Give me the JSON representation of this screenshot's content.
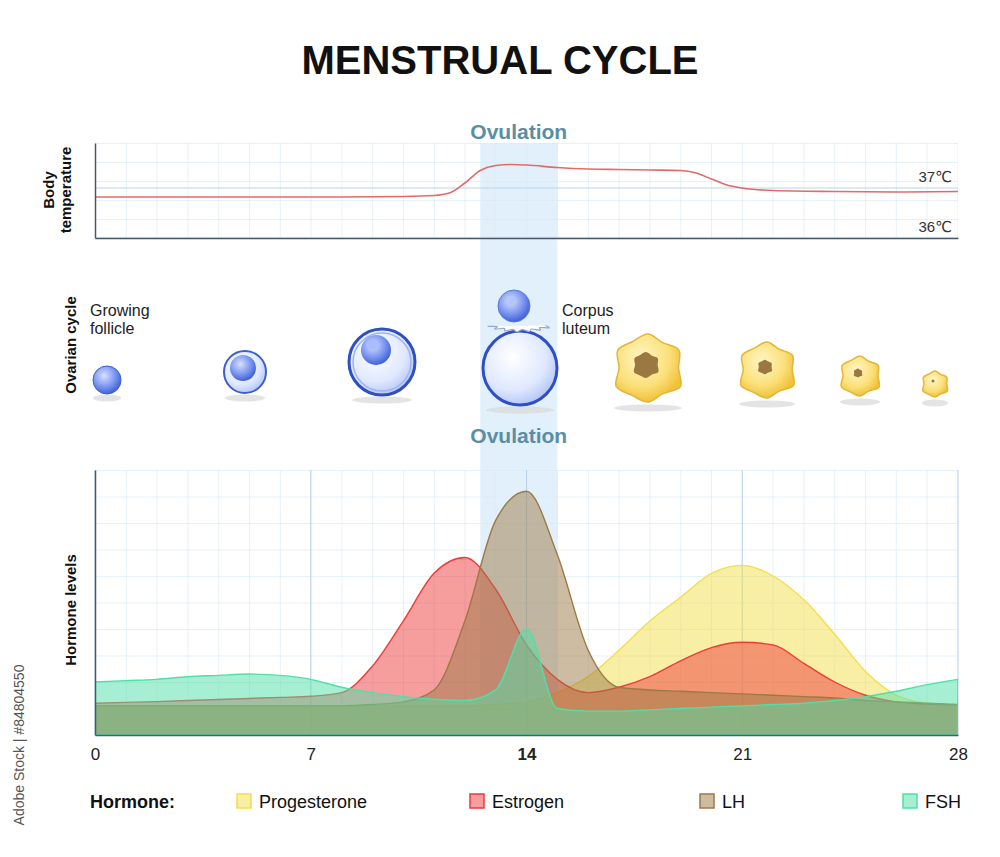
{
  "title": "MENSTRUAL CYCLE",
  "source": "Adobe Stock | #84804550",
  "ovarian_cycle": {
    "label": "Ovarian cycle",
    "stages": [
      "Growing follicle",
      "Corpus luteum"
    ]
  },
  "chart_data": [
    {
      "type": "line",
      "y_label": "Body temperature",
      "x": [
        0,
        2,
        4,
        6,
        8,
        10,
        11,
        11.5,
        12,
        12.5,
        13,
        13.5,
        14,
        15,
        16,
        17,
        18,
        19,
        19.5,
        20,
        20.5,
        21,
        22,
        24,
        26,
        28
      ],
      "values": [
        36.82,
        36.82,
        36.82,
        36.82,
        36.82,
        36.83,
        36.85,
        36.9,
        37.1,
        37.35,
        37.45,
        37.47,
        37.46,
        37.41,
        37.38,
        37.37,
        37.36,
        37.35,
        37.3,
        37.18,
        37.06,
        37.0,
        36.95,
        36.93,
        36.92,
        36.93
      ],
      "color": "#e46a6a",
      "xlim": [
        0,
        28
      ],
      "ylim": [
        36,
        37.9
      ],
      "yticks": [
        {
          "value": 36,
          "label": "36℃"
        },
        {
          "value": 37,
          "label": "37℃"
        }
      ],
      "tick_labels": "y",
      "grid": true,
      "annotations": [
        {
          "text": "Ovulation",
          "x": [
            12.5,
            15
          ]
        }
      ]
    },
    {
      "type": "area",
      "y_label": "Hormone levels",
      "legend_title": "Hormone:",
      "legend": "bottom",
      "x": [
        0,
        1,
        2,
        3,
        4,
        5,
        6,
        7,
        8,
        9,
        10,
        11,
        12,
        13,
        14,
        15,
        16,
        17,
        18,
        19,
        20,
        21,
        22,
        23,
        24,
        25,
        26,
        27,
        28
      ],
      "series": [
        {
          "name": "Progesterone",
          "color": "#f2df4a",
          "values": [
            11,
            11,
            11,
            11,
            11,
            11,
            11,
            11,
            11,
            11,
            11,
            11,
            11,
            11.5,
            12.5,
            16,
            22,
            32,
            43,
            52,
            61,
            64,
            60,
            51,
            38,
            24,
            15,
            12,
            11.3
          ]
        },
        {
          "name": "Estrogen",
          "color": "#ee3b3b",
          "values": [
            12,
            12.3,
            12.6,
            13,
            13.4,
            13.8,
            14.2,
            14.6,
            16,
            26,
            43,
            61,
            67,
            55,
            34,
            21,
            16,
            18,
            22,
            28,
            33,
            35,
            34,
            27,
            20,
            15,
            12.5,
            11.7,
            11.3
          ]
        },
        {
          "name": "LH",
          "color": "#9c7a45",
          "values": [
            11,
            11,
            11,
            11,
            11,
            11,
            11,
            11,
            11,
            11.5,
            12.5,
            17,
            43,
            81,
            92,
            68,
            32,
            18,
            17,
            16.5,
            16,
            15.5,
            15,
            14.5,
            14,
            13,
            12.5,
            12,
            11.5
          ]
        },
        {
          "name": "FSH",
          "color": "#4fe0a8",
          "values": [
            20,
            20.5,
            21,
            22,
            22.5,
            23,
            22.5,
            21,
            18,
            16,
            14.5,
            13.5,
            13,
            17,
            40,
            10,
            9,
            9,
            9.5,
            10,
            10.5,
            11,
            11.5,
            12,
            13,
            14.5,
            16.5,
            19,
            21
          ]
        }
      ],
      "xlim": [
        0,
        28
      ],
      "ylim": [
        0,
        100
      ],
      "xticks": [
        0,
        7,
        14,
        21,
        28
      ],
      "tick_labels": "x",
      "grid": true,
      "annotations": [
        {
          "text": "Ovulation",
          "x": [
            12.5,
            15
          ]
        }
      ]
    }
  ]
}
